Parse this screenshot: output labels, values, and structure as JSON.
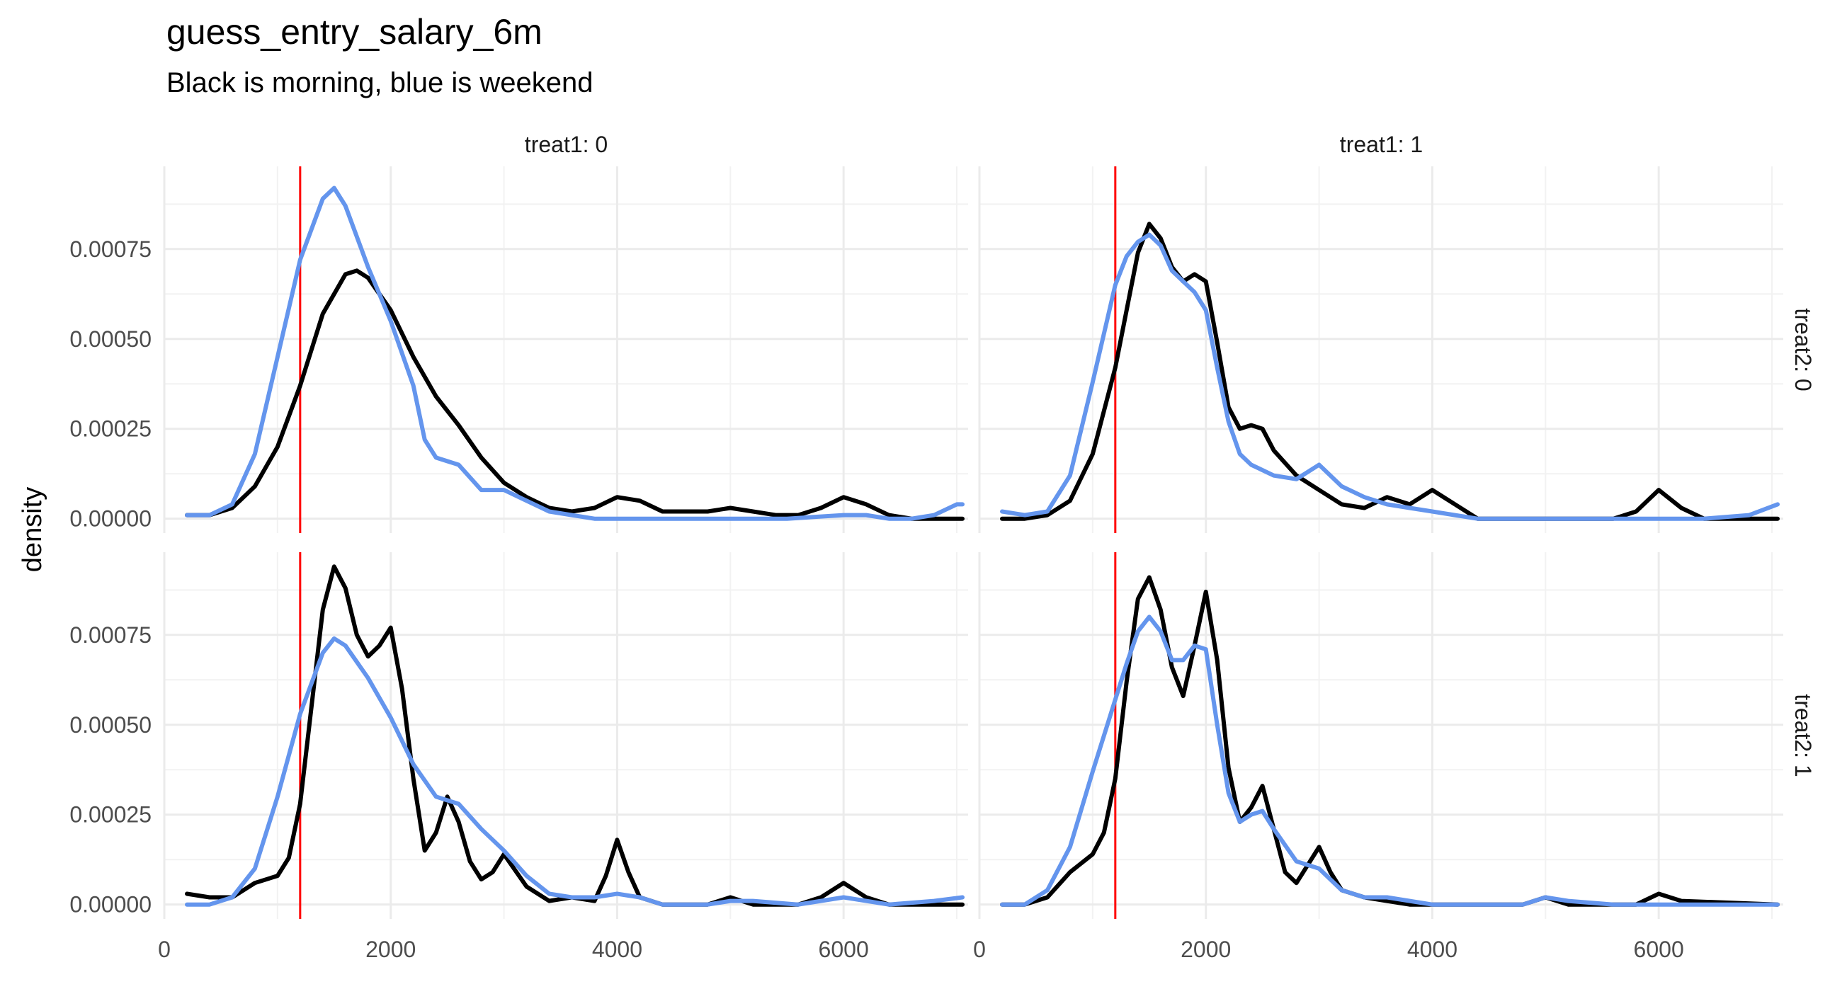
{
  "title": "guess_entry_salary_6m",
  "subtitle": "Black is morning, blue is weekend",
  "chart_data": {
    "type": "line",
    "xlabel": "",
    "ylabel": "density",
    "xlim": [
      0,
      7100
    ],
    "ylim": [
      -4e-05,
      0.00098
    ],
    "x_ticks": [
      0,
      2000,
      4000,
      6000
    ],
    "x_tick_labels": [
      "0",
      "2000",
      "4000",
      "6000"
    ],
    "y_ticks": [
      0,
      0.00025,
      0.0005,
      0.00075
    ],
    "y_tick_labels": [
      "0.00000",
      "0.00025",
      "0.00050",
      "0.00075"
    ],
    "grid": true,
    "reference_line": {
      "x": 1200,
      "color": "#ff0000"
    },
    "series_colors": {
      "morning": "#000000",
      "weekend": "#6495ED"
    },
    "panels": [
      {
        "col_label": "treat1: 0",
        "row_label": "treat2: 0",
        "col": 0,
        "row": 0,
        "series": [
          {
            "color": "#000000",
            "x": [
              200,
              400,
              600,
              800,
              1000,
              1200,
              1400,
              1600,
              1700,
              1800,
              2000,
              2200,
              2400,
              2600,
              2800,
              3000,
              3200,
              3400,
              3600,
              3800,
              4000,
              4200,
              4400,
              4600,
              4800,
              5000,
              5200,
              5400,
              5600,
              5800,
              6000,
              6200,
              6400,
              6600,
              6800,
              7050
            ],
            "y": [
              1e-05,
              1e-05,
              3e-05,
              9e-05,
              0.0002,
              0.00037,
              0.00057,
              0.00068,
              0.00069,
              0.00067,
              0.00058,
              0.00045,
              0.00034,
              0.00026,
              0.00017,
              0.0001,
              6e-05,
              3e-05,
              2e-05,
              3e-05,
              6e-05,
              5e-05,
              2e-05,
              2e-05,
              2e-05,
              3e-05,
              2e-05,
              1e-05,
              1e-05,
              3e-05,
              6e-05,
              4e-05,
              1e-05,
              0,
              0,
              0
            ]
          },
          {
            "color": "#6495ED",
            "x": [
              200,
              400,
              600,
              800,
              1000,
              1200,
              1400,
              1500,
              1600,
              1800,
              2000,
              2200,
              2300,
              2400,
              2600,
              2800,
              3000,
              3200,
              3400,
              3600,
              3800,
              4000,
              4500,
              5000,
              5500,
              6000,
              6200,
              6400,
              6600,
              6800,
              7000,
              7050
            ],
            "y": [
              1e-05,
              1e-05,
              4e-05,
              0.00018,
              0.00045,
              0.00072,
              0.00089,
              0.00092,
              0.00087,
              0.0007,
              0.00055,
              0.00037,
              0.00022,
              0.00017,
              0.00015,
              8e-05,
              8e-05,
              5e-05,
              2e-05,
              1e-05,
              0,
              0,
              0,
              0,
              0,
              1e-05,
              1e-05,
              0,
              0,
              1e-05,
              4e-05,
              4e-05
            ]
          }
        ]
      },
      {
        "col_label": "treat1: 1",
        "row_label": "treat2: 0",
        "col": 1,
        "row": 0,
        "series": [
          {
            "color": "#000000",
            "x": [
              200,
              400,
              600,
              800,
              1000,
              1200,
              1300,
              1400,
              1500,
              1600,
              1700,
              1800,
              1900,
              2000,
              2100,
              2200,
              2300,
              2400,
              2500,
              2600,
              2800,
              3000,
              3200,
              3400,
              3600,
              3800,
              4000,
              4200,
              4400,
              4800,
              5200,
              5600,
              5800,
              6000,
              6200,
              6400,
              6800,
              7050
            ],
            "y": [
              0,
              0,
              1e-05,
              5e-05,
              0.00018,
              0.00042,
              0.00058,
              0.00074,
              0.00082,
              0.00078,
              0.0007,
              0.00066,
              0.00068,
              0.00066,
              0.00049,
              0.00031,
              0.00025,
              0.00026,
              0.00025,
              0.00019,
              0.00012,
              8e-05,
              4e-05,
              3e-05,
              6e-05,
              4e-05,
              8e-05,
              4e-05,
              0,
              0,
              0,
              0,
              2e-05,
              8e-05,
              3e-05,
              0,
              0,
              0
            ]
          },
          {
            "color": "#6495ED",
            "x": [
              200,
              400,
              600,
              800,
              1000,
              1200,
              1300,
              1400,
              1500,
              1600,
              1700,
              1800,
              1900,
              2000,
              2100,
              2200,
              2300,
              2400,
              2600,
              2800,
              3000,
              3200,
              3400,
              3600,
              3800,
              4000,
              4200,
              4400,
              4800,
              5200,
              5600,
              6000,
              6400,
              6800,
              7050
            ],
            "y": [
              2e-05,
              1e-05,
              2e-05,
              0.00012,
              0.00038,
              0.00065,
              0.00073,
              0.00077,
              0.00079,
              0.00076,
              0.00069,
              0.00066,
              0.00063,
              0.00058,
              0.00042,
              0.00027,
              0.00018,
              0.00015,
              0.00012,
              0.00011,
              0.00015,
              9e-05,
              6e-05,
              4e-05,
              3e-05,
              2e-05,
              1e-05,
              0,
              0,
              0,
              0,
              0,
              0,
              1e-05,
              4e-05
            ]
          }
        ]
      },
      {
        "col_label": "treat1: 0",
        "row_label": "treat2: 1",
        "col": 0,
        "row": 1,
        "series": [
          {
            "color": "#000000",
            "x": [
              200,
              400,
              600,
              800,
              1000,
              1100,
              1200,
              1300,
              1400,
              1500,
              1600,
              1700,
              1800,
              1900,
              2000,
              2100,
              2200,
              2300,
              2400,
              2500,
              2600,
              2700,
              2800,
              2900,
              3000,
              3200,
              3400,
              3600,
              3800,
              3900,
              4000,
              4100,
              4200,
              4400,
              4800,
              5000,
              5200,
              5600,
              5800,
              6000,
              6200,
              6400,
              7050
            ],
            "y": [
              3e-05,
              2e-05,
              2e-05,
              6e-05,
              8e-05,
              0.00013,
              0.00028,
              0.00055,
              0.00082,
              0.00094,
              0.00088,
              0.00075,
              0.00069,
              0.00072,
              0.00077,
              0.0006,
              0.00035,
              0.00015,
              0.0002,
              0.0003,
              0.00023,
              0.00012,
              7e-05,
              9e-05,
              0.00014,
              5e-05,
              1e-05,
              2e-05,
              1e-05,
              8e-05,
              0.00018,
              9e-05,
              2e-05,
              0,
              0,
              2e-05,
              0,
              0,
              2e-05,
              6e-05,
              2e-05,
              0,
              0
            ]
          },
          {
            "color": "#6495ED",
            "x": [
              200,
              400,
              600,
              800,
              1000,
              1200,
              1400,
              1500,
              1600,
              1800,
              2000,
              2200,
              2400,
              2600,
              2800,
              3000,
              3200,
              3400,
              3600,
              3800,
              4000,
              4200,
              4400,
              4800,
              5000,
              5200,
              5600,
              6000,
              6400,
              6800,
              7050
            ],
            "y": [
              0,
              0,
              2e-05,
              0.0001,
              0.0003,
              0.00053,
              0.0007,
              0.00074,
              0.00072,
              0.00063,
              0.00052,
              0.00039,
              0.0003,
              0.00028,
              0.00021,
              0.00015,
              8e-05,
              3e-05,
              2e-05,
              2e-05,
              3e-05,
              2e-05,
              0,
              0,
              1e-05,
              1e-05,
              0,
              2e-05,
              0,
              1e-05,
              2e-05
            ]
          }
        ]
      },
      {
        "col_label": "treat1: 1",
        "row_label": "treat2: 1",
        "col": 1,
        "row": 1,
        "series": [
          {
            "color": "#000000",
            "x": [
              200,
              400,
              600,
              800,
              1000,
              1100,
              1200,
              1300,
              1400,
              1500,
              1600,
              1700,
              1800,
              1900,
              2000,
              2100,
              2200,
              2300,
              2400,
              2500,
              2600,
              2700,
              2800,
              2900,
              3000,
              3100,
              3200,
              3400,
              3600,
              3800,
              4000,
              4500,
              4800,
              5000,
              5200,
              5600,
              5800,
              6000,
              6200,
              7050
            ],
            "y": [
              0,
              0,
              2e-05,
              9e-05,
              0.00014,
              0.0002,
              0.00035,
              0.00062,
              0.00085,
              0.00091,
              0.00082,
              0.00066,
              0.00058,
              0.00072,
              0.00087,
              0.00068,
              0.00038,
              0.00023,
              0.00027,
              0.00033,
              0.00021,
              9e-05,
              6e-05,
              0.00011,
              0.00016,
              9e-05,
              4e-05,
              2e-05,
              1e-05,
              0,
              0,
              0,
              0,
              2e-05,
              0,
              0,
              0,
              3e-05,
              1e-05,
              0
            ]
          },
          {
            "color": "#6495ED",
            "x": [
              200,
              400,
              600,
              800,
              1000,
              1200,
              1300,
              1400,
              1500,
              1600,
              1700,
              1800,
              1900,
              2000,
              2100,
              2200,
              2300,
              2400,
              2500,
              2600,
              2800,
              3000,
              3200,
              3400,
              3600,
              3800,
              4000,
              4500,
              4800,
              5000,
              5200,
              5600,
              6000,
              6400,
              7050
            ],
            "y": [
              0,
              0,
              4e-05,
              0.00016,
              0.00037,
              0.00057,
              0.00067,
              0.00076,
              0.0008,
              0.00076,
              0.00068,
              0.00068,
              0.00072,
              0.00071,
              0.0005,
              0.00031,
              0.00023,
              0.00025,
              0.00026,
              0.00021,
              0.00012,
              0.0001,
              4e-05,
              2e-05,
              2e-05,
              1e-05,
              0,
              0,
              0,
              2e-05,
              1e-05,
              0,
              0,
              0,
              0
            ]
          }
        ]
      }
    ]
  }
}
